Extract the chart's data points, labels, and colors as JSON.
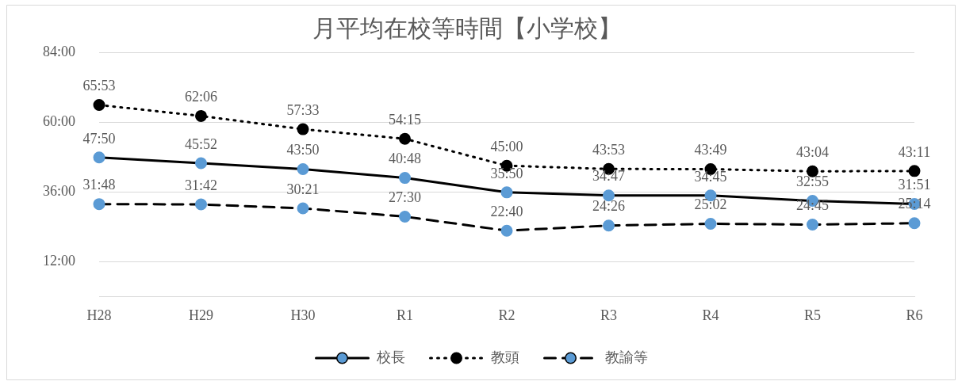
{
  "chart_data": {
    "type": "line",
    "title": "月平均在校等時間【小学校】",
    "categories": [
      "H28",
      "H29",
      "H30",
      "R1",
      "R2",
      "R3",
      "R4",
      "R5",
      "R6"
    ],
    "series": [
      {
        "name": "校長",
        "color": "#000000",
        "colors": [
          "#5b9bd5",
          "#5b9bd5",
          "#5b9bd5",
          "#5b9bd5",
          "#5b9bd5",
          "#5b9bd5",
          "#5b9bd5",
          "#5b9bd5",
          "#5b9bd5"
        ],
        "line_style": "solid",
        "values": [
          47.833,
          45.867,
          43.833,
          40.8,
          35.833,
          34.783,
          34.75,
          32.917,
          31.85
        ],
        "value_labels": [
          "47:50",
          "45:52",
          "43:50",
          "40:48",
          "35:50",
          "34:47",
          "34:45",
          "32:55",
          "31:51"
        ]
      },
      {
        "name": "教頭",
        "color": "#000000",
        "colors": [
          "#000000",
          "#000000",
          "#000000",
          "#000000",
          "#000000",
          "#000000",
          "#000000",
          "#000000",
          "#000000"
        ],
        "line_style": "dotted",
        "values": [
          65.883,
          62.1,
          57.55,
          54.25,
          45,
          43.883,
          43.817,
          43.067,
          43.183
        ],
        "value_labels": [
          "65:53",
          "62:06",
          "57:33",
          "54:15",
          "45:00",
          "43:53",
          "43:49",
          "43:04",
          "43:11"
        ]
      },
      {
        "name": "教諭等",
        "color": "#000000",
        "colors": [
          "#5b9bd5",
          "#5b9bd5",
          "#5b9bd5",
          "#5b9bd5",
          "#5b9bd5",
          "#5b9bd5",
          "#5b9bd5",
          "#5b9bd5",
          "#5b9bd5"
        ],
        "line_style": "dashed",
        "values": [
          31.8,
          31.7,
          30.35,
          27.5,
          22.667,
          24.433,
          25.033,
          24.75,
          25.233
        ],
        "value_labels": [
          "31:48",
          "31:42",
          "30:21",
          "27:30",
          "22:40",
          "24:26",
          "25:02",
          "24:45",
          "25:14"
        ]
      }
    ],
    "ylim": [
      0,
      84
    ],
    "yticks": [
      {
        "value": 0,
        "label": null
      },
      {
        "value": 12,
        "label": "12:00"
      },
      {
        "value": 36,
        "label": "36:00"
      },
      {
        "value": 60,
        "label": "60:00"
      },
      {
        "value": 84,
        "label": "84:00"
      }
    ],
    "grid": "y",
    "legend": "bottom",
    "marker": "circle"
  }
}
